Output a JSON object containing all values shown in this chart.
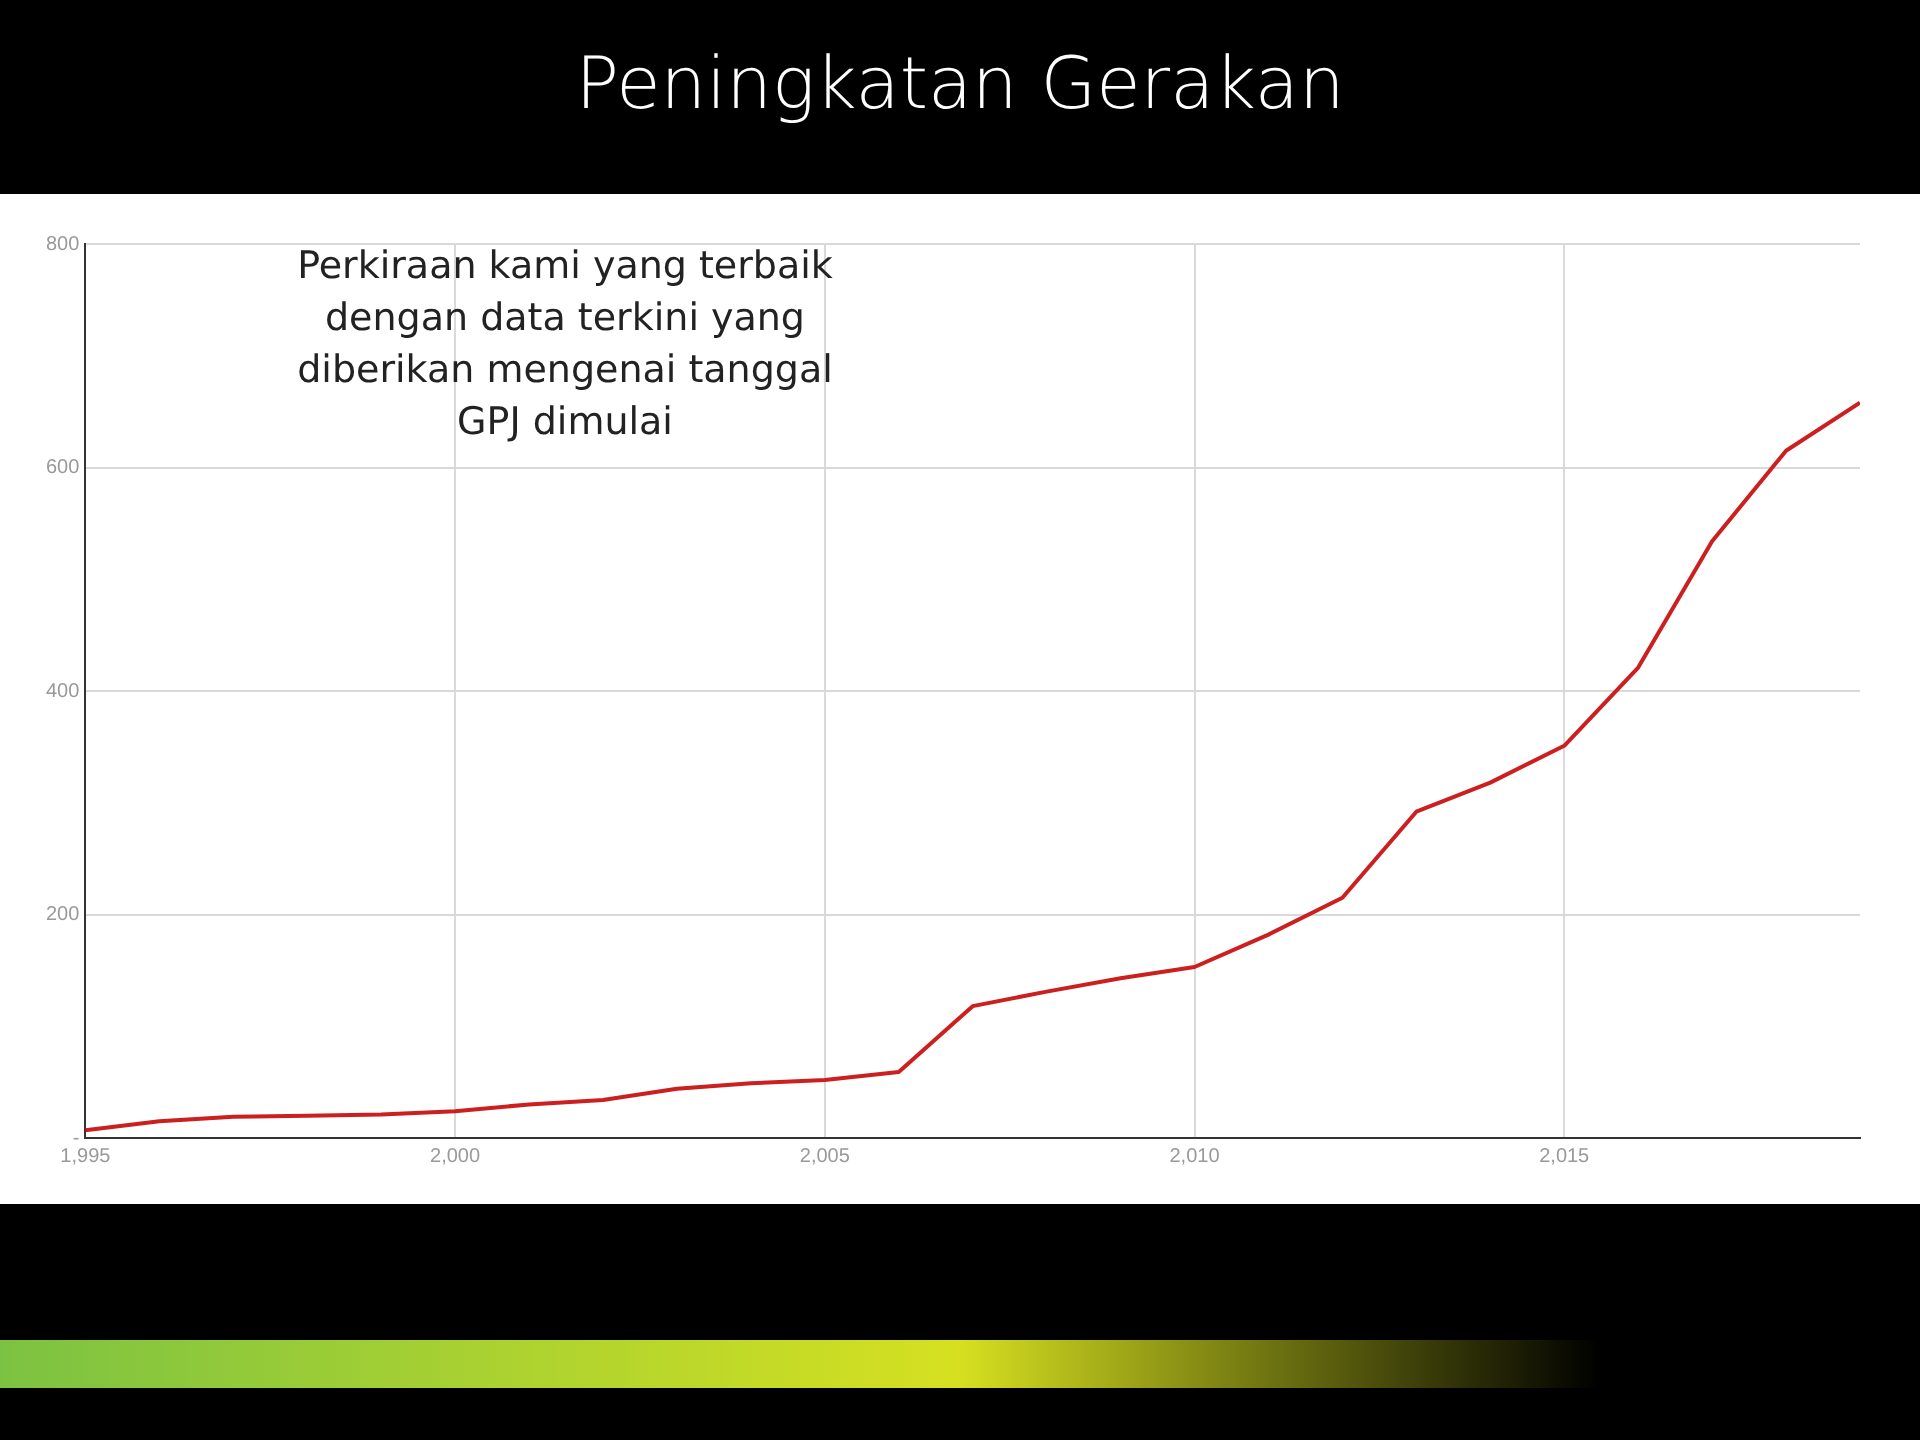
{
  "chart_data": {
    "type": "line",
    "title": "Peningkatan Gerakan",
    "x": [
      1995,
      1996,
      1997,
      1998,
      1999,
      2000,
      2001,
      2002,
      2003,
      2004,
      2005,
      2006,
      2007,
      2008,
      2009,
      2010,
      2011,
      2012,
      2013,
      2014,
      2015,
      2016,
      2017,
      2018,
      2019
    ],
    "series": [
      {
        "color": "#cc1f1f",
        "values": [
          7,
          15,
          19,
          20,
          21,
          24,
          30,
          34,
          44,
          49,
          52,
          59,
          118,
          131,
          143,
          153,
          182,
          215,
          292,
          318,
          351,
          421,
          534,
          615,
          658
        ]
      }
    ],
    "xlim": [
      1995,
      2019
    ],
    "xticks": [
      {
        "value": 1995,
        "label": "1,995"
      },
      {
        "value": 2000,
        "label": "2,000"
      },
      {
        "value": 2005,
        "label": "2,005"
      },
      {
        "value": 2010,
        "label": "2,010"
      },
      {
        "value": 2015,
        "label": "2,015"
      }
    ],
    "ylim": [
      0,
      800
    ],
    "yticks": [
      {
        "value": 0,
        "label": "-"
      },
      200,
      400,
      600,
      800
    ],
    "grid": true,
    "legend": false,
    "marker": "none",
    "line_style": "solid",
    "annotations": [
      "Perkiraan kami yang terbaik dengan data terkini yang diberikan mengenai tanggal GPJ dimulai"
    ]
  }
}
